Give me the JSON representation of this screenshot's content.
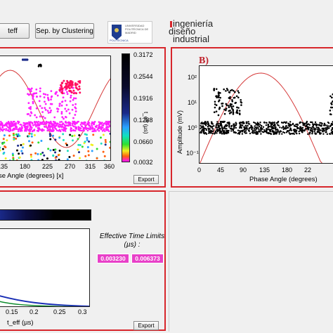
{
  "toolbar": {
    "teff_button": "teff",
    "cluster_button": "Sep. by Clustering"
  },
  "logos": {
    "upm_text": "UNIVERSIDAD POLITÉCNICA DE MADRID",
    "upm_bottom": "POLITÉCNICA",
    "ingenieria_line1": "ingeniería",
    "ingenieria_line2": "diseño",
    "ingenieria_line3": "industrial"
  },
  "panel_a": {
    "xticks": [
      "135",
      "180",
      "225",
      "270",
      "315",
      "360"
    ],
    "xlabel": "se Angle (degrees) [x]",
    "colorbar_ticks": [
      "0.3172",
      "0.2544",
      "0.1916",
      "0.1288",
      "0.0660",
      "0.0032"
    ],
    "colorbar_label": "t_eff (µs)",
    "export": "Export"
  },
  "panel_b": {
    "title": "B)",
    "ylabel": "Amplitude (mV)",
    "yticks": [
      "10²",
      "10¹",
      "10⁰",
      "10⁻¹"
    ],
    "xticks": [
      "0",
      "45",
      "90",
      "135",
      "180",
      "22"
    ],
    "xlabel": "Phase Angle (degrees)"
  },
  "panel_c": {
    "xticks": [
      "0.15",
      "0.2",
      "0.25",
      "0.3"
    ],
    "xlabel": "t_eff (µs)",
    "limits_title": "Effective Time Limits (µs) :",
    "limit_low": "0.003230",
    "limit_high": "0.006373",
    "export": "Export"
  },
  "colors": {
    "panel_border": "#d7262b",
    "sine": "#d63a3a",
    "limit_bg": "#e840c8",
    "curve": "#1a2fb5"
  }
}
